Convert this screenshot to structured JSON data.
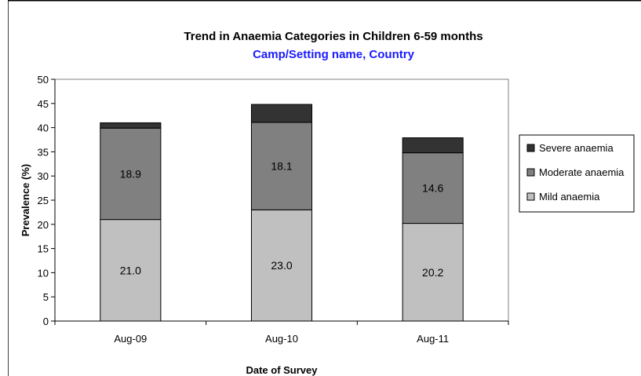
{
  "chart_data": {
    "type": "bar",
    "stacked": true,
    "title": "Trend in Anaemia Categories in Children 6-59 months",
    "subtitle": "Camp/Setting name, Country",
    "xlabel": "Date of Survey",
    "ylabel": "Prevalence (%)",
    "ylim": [
      0,
      50
    ],
    "yticks": [
      0,
      5,
      10,
      15,
      20,
      25,
      30,
      35,
      40,
      45,
      50
    ],
    "categories": [
      "Aug-09",
      "Aug-10",
      "Aug-11"
    ],
    "series": [
      {
        "name": "Mild anaemia",
        "values": [
          21.0,
          23.0,
          20.2
        ],
        "labels": [
          "21.0",
          "23.0",
          "20.2"
        ],
        "color": "#c0c0c0"
      },
      {
        "name": "Moderate anaemia",
        "values": [
          18.9,
          18.1,
          14.6
        ],
        "labels": [
          "18.9",
          "18.1",
          "14.6"
        ],
        "color": "#808080"
      },
      {
        "name": "Severe anaemia",
        "values": [
          1.1,
          3.7,
          3.1
        ],
        "color": "#333333"
      }
    ],
    "grid": false,
    "legend_position": "right"
  }
}
